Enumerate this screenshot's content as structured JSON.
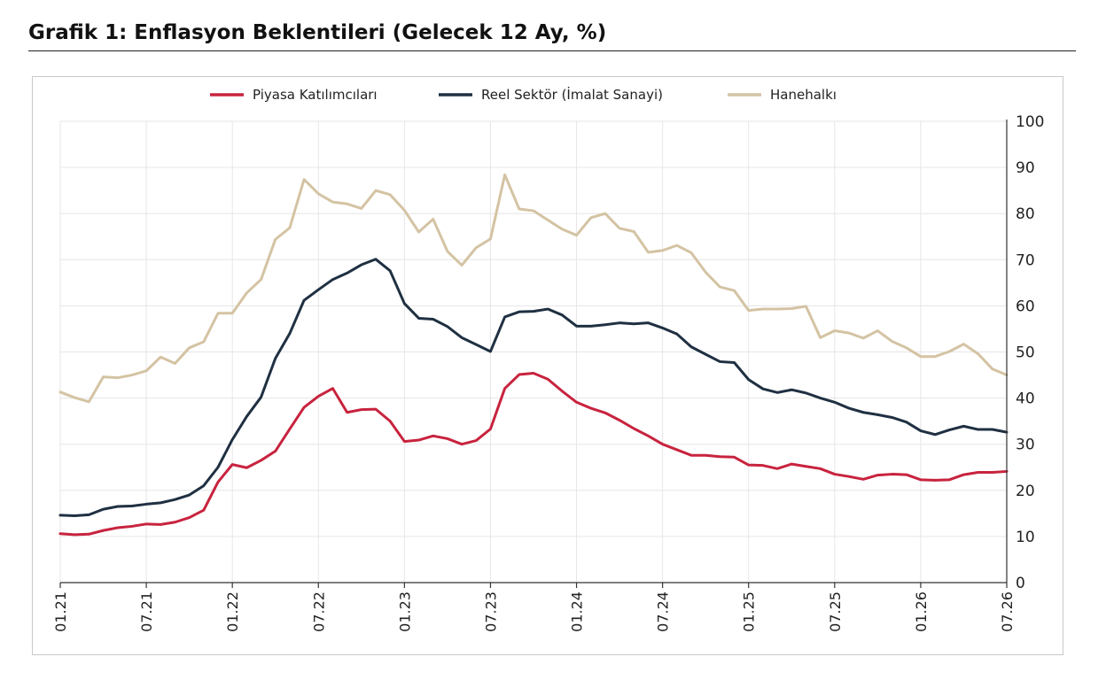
{
  "page": {
    "title": "Grafik 1: Enflasyon Beklentileri (Gelecek 12 Ay, %)"
  },
  "chart_data": {
    "type": "line",
    "title": "Grafik 1: Enflasyon Beklentileri (Gelecek 12 Ay, %)",
    "xlabel": "",
    "ylabel": "",
    "ylim": [
      0,
      100
    ],
    "y_ticks": [
      0,
      10,
      20,
      30,
      40,
      50,
      60,
      70,
      80,
      90,
      100
    ],
    "y_axis_side": "right",
    "x_range": [
      "01.21",
      "07.26"
    ],
    "x_ticks": [
      "01.21",
      "07.21",
      "01.22",
      "07.22",
      "01.23",
      "07.23",
      "01.24",
      "07.24",
      "01.25",
      "07.25",
      "01.26",
      "07.26"
    ],
    "grid": "vertical-and-horizontal",
    "legend_position": "top",
    "x": [
      "01.21",
      "02.21",
      "03.21",
      "04.21",
      "05.21",
      "06.21",
      "07.21",
      "08.21",
      "09.21",
      "10.21",
      "11.21",
      "12.21",
      "01.22",
      "02.22",
      "03.22",
      "04.22",
      "05.22",
      "06.22",
      "07.22",
      "08.22",
      "09.22",
      "10.22",
      "11.22",
      "12.22",
      "01.23",
      "02.23",
      "03.23",
      "04.23",
      "05.23",
      "06.23",
      "07.23",
      "08.23",
      "09.23",
      "10.23",
      "11.23",
      "12.23",
      "01.24",
      "02.24",
      "03.24",
      "04.24",
      "05.24",
      "06.24",
      "07.24",
      "08.24",
      "09.24",
      "10.24",
      "11.24",
      "12.24",
      "01.25",
      "02.25",
      "03.25",
      "04.25",
      "05.25",
      "06.25",
      "07.25",
      "08.25",
      "09.25",
      "10.25",
      "11.25",
      "12.25",
      "01.26",
      "02.26",
      "03.26",
      "04.26",
      "05.26",
      "06.26",
      "07.26"
    ],
    "series": [
      {
        "name": "Piyasa Katılımcıları",
        "color": "#c8233e",
        "values": [
          10.6,
          10.4,
          10.5,
          11.3,
          11.9,
          12.2,
          12.7,
          12.6,
          13.1,
          14.1,
          15.7,
          21.8,
          25.6,
          24.9,
          26.5,
          28.5,
          33.3,
          38.0,
          40.4,
          42.1,
          36.9,
          37.5,
          37.6,
          35.0,
          30.6,
          30.9,
          31.8,
          31.2,
          30.0,
          30.8,
          33.3,
          42.1,
          45.1,
          45.4,
          44.1,
          41.5,
          39.1,
          37.8,
          36.8,
          35.2,
          33.4,
          31.8,
          30.0,
          28.8,
          27.6,
          27.6,
          27.3,
          27.2,
          25.5,
          25.4,
          24.7,
          25.7,
          25.2,
          24.7,
          23.5,
          23.0,
          22.4,
          23.3,
          23.5,
          23.4,
          22.3,
          22.2,
          22.3,
          23.4,
          23.9,
          23.9,
          24.1
        ]
      },
      {
        "name": "Reel Sektör (İmalat Sanayi)",
        "color": "#1f3042",
        "values": [
          14.6,
          14.5,
          14.7,
          15.9,
          16.5,
          16.6,
          17.0,
          17.3,
          18.0,
          19.0,
          21.0,
          25.0,
          31.0,
          36.0,
          40.2,
          48.6,
          54.0,
          61.2,
          63.5,
          65.7,
          67.1,
          68.9,
          70.1,
          67.6,
          60.5,
          57.3,
          57.1,
          55.5,
          53.1,
          51.6,
          50.1,
          57.6,
          58.7,
          58.8,
          59.3,
          58.0,
          55.6,
          55.6,
          55.9,
          56.3,
          56.1,
          56.3,
          55.2,
          53.9,
          51.1,
          49.5,
          47.9,
          47.7,
          44.0,
          42.0,
          41.2,
          41.8,
          41.1,
          40.0,
          39.1,
          37.8,
          36.9,
          36.4,
          35.8,
          34.8,
          32.9,
          32.1,
          33.1,
          33.9,
          33.2,
          33.2,
          32.6
        ]
      },
      {
        "name": "Hanehalkı",
        "color": "#d4c3a3",
        "values": [
          41.3,
          40.1,
          39.2,
          44.6,
          44.4,
          45.0,
          45.9,
          48.9,
          47.5,
          50.9,
          52.2,
          58.4,
          58.4,
          62.8,
          65.7,
          74.4,
          76.9,
          87.4,
          84.3,
          82.5,
          82.1,
          81.1,
          85.0,
          84.1,
          80.7,
          76.0,
          78.8,
          71.8,
          68.8,
          72.6,
          74.5,
          88.4,
          81.0,
          80.6,
          78.6,
          76.6,
          75.3,
          79.1,
          80.0,
          76.8,
          76.1,
          71.6,
          72.0,
          73.1,
          71.5,
          67.3,
          64.1,
          63.3,
          59.0,
          59.3,
          59.3,
          59.4,
          59.9,
          53.1,
          54.6,
          54.1,
          53.0,
          54.6,
          52.3,
          50.9,
          49.0,
          49.0,
          50.1,
          51.7,
          49.6,
          46.3,
          45.0
        ]
      }
    ]
  }
}
